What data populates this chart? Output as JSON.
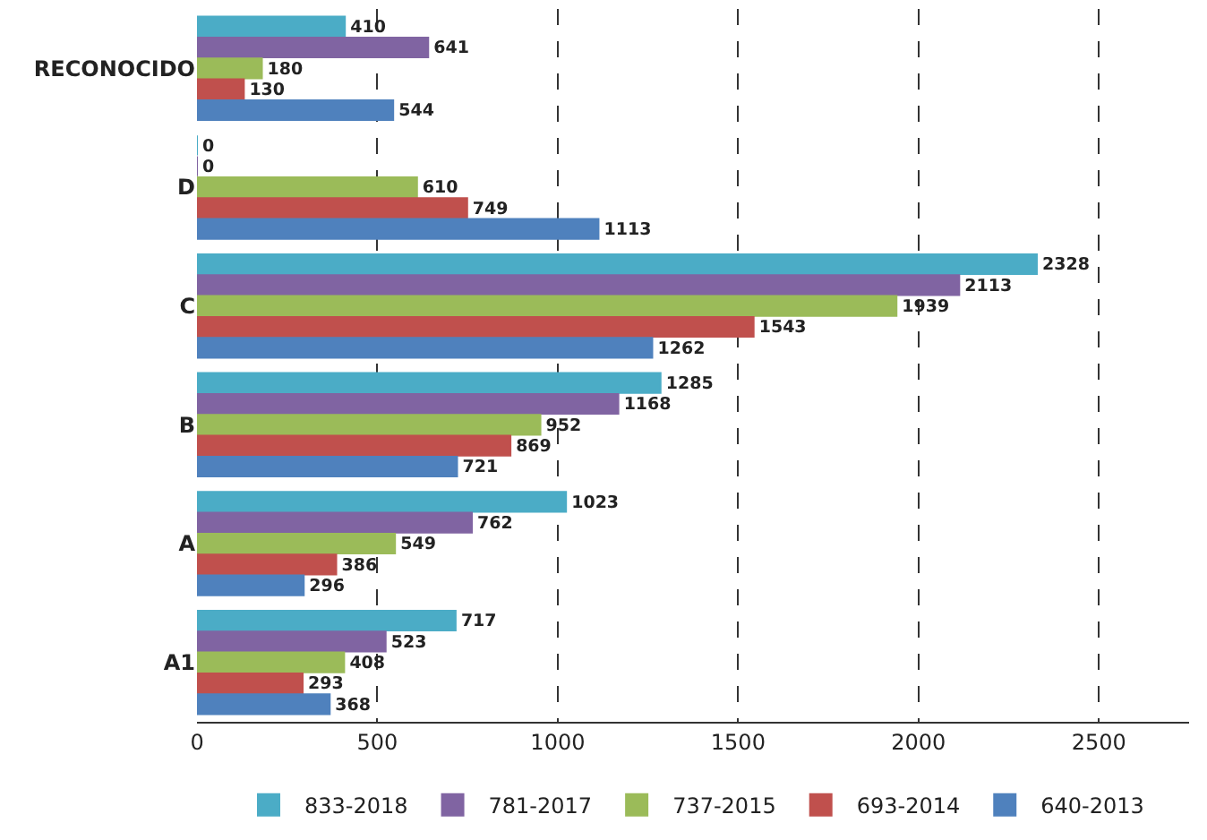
{
  "chart_data": {
    "type": "bar",
    "orientation": "horizontal",
    "categories": [
      "RECONOCIDO",
      "D",
      "C",
      "B",
      "A",
      "A1"
    ],
    "series": [
      {
        "name": "833-2018",
        "color": "#4bacc6",
        "values": [
          410,
          0,
          2328,
          1285,
          1023,
          717
        ]
      },
      {
        "name": "781-2017",
        "color": "#8064a2",
        "values": [
          641,
          0,
          2113,
          1168,
          762,
          523
        ]
      },
      {
        "name": "737-2015",
        "color": "#9bbb59",
        "values": [
          180,
          610,
          1939,
          952,
          549,
          408
        ]
      },
      {
        "name": "693-2014",
        "color": "#c0504d",
        "values": [
          130,
          749,
          1543,
          869,
          386,
          293
        ]
      },
      {
        "name": "640-2013",
        "color": "#4f81bd",
        "values": [
          544,
          1113,
          1262,
          721,
          296,
          368
        ]
      }
    ],
    "xlim": [
      0,
      2750
    ],
    "xticks": [
      0,
      500,
      1000,
      1500,
      2000,
      2500
    ],
    "grid": "x",
    "legend": "bottom",
    "data_labels": true
  }
}
